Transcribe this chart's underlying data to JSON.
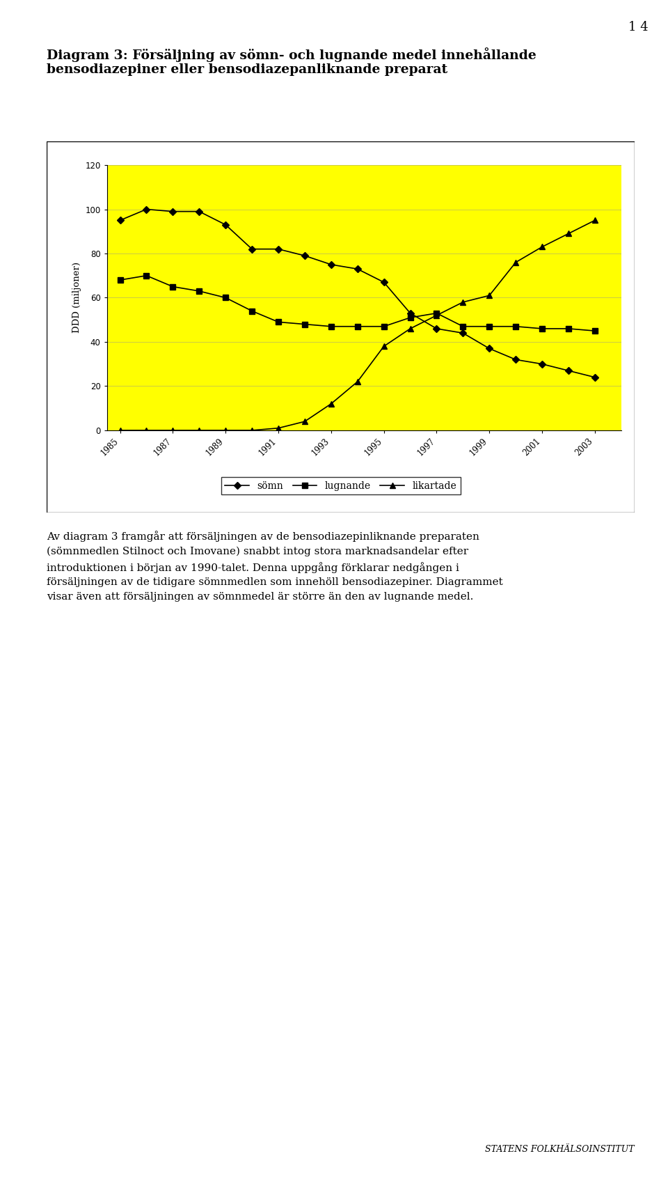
{
  "title_line1": "Diagram 3: Försäljning av sömn- och lugnande medel innehållande",
  "title_line2": "bensodiazepiner eller bensodiazepanliknande preparat",
  "years": [
    1985,
    1986,
    1987,
    1988,
    1989,
    1990,
    1991,
    1992,
    1993,
    1994,
    1995,
    1996,
    1997,
    1998,
    1999,
    2000,
    2001,
    2002,
    2003
  ],
  "somn": [
    95,
    100,
    99,
    99,
    93,
    82,
    82,
    79,
    75,
    73,
    67,
    53,
    46,
    44,
    37,
    32,
    30,
    27,
    24
  ],
  "lugnande": [
    68,
    70,
    65,
    63,
    60,
    54,
    49,
    48,
    47,
    47,
    47,
    51,
    53,
    47,
    47,
    47,
    46,
    46,
    45
  ],
  "likartade": [
    0,
    0,
    0,
    0,
    0,
    0,
    1,
    4,
    12,
    22,
    38,
    46,
    52,
    58,
    61,
    76,
    83,
    89,
    95
  ],
  "ylabel": "DDD (miljoner)",
  "ylim": [
    0,
    120
  ],
  "yticks": [
    0,
    20,
    40,
    60,
    80,
    100,
    120
  ],
  "background_color": "#FFFF00",
  "outer_bg": "#FFFFFF",
  "legend_labels": [
    "sömn",
    "lugnande",
    "likartade"
  ],
  "page_number": "1 4",
  "body_text": "Av diagram 3 framgår att försäljningen av de bensodiazepinliknande preparaten\n(sömnmedlen Stilnoct och Imovane) snabbt intog stora marknadsandelar efter\nintroduktionen i början av 1990-talet. Denna uppgång förklarar nedgången i\nförsäljningen av de tidigare sömnmedlen som innehöll bensodiazepiner. Diagrammet\nvisar även att försäljningen av sömnmedel är större än den av lugnande medel.",
  "footer_text": "STATENS FOLKHÄLSOINSTITUT"
}
